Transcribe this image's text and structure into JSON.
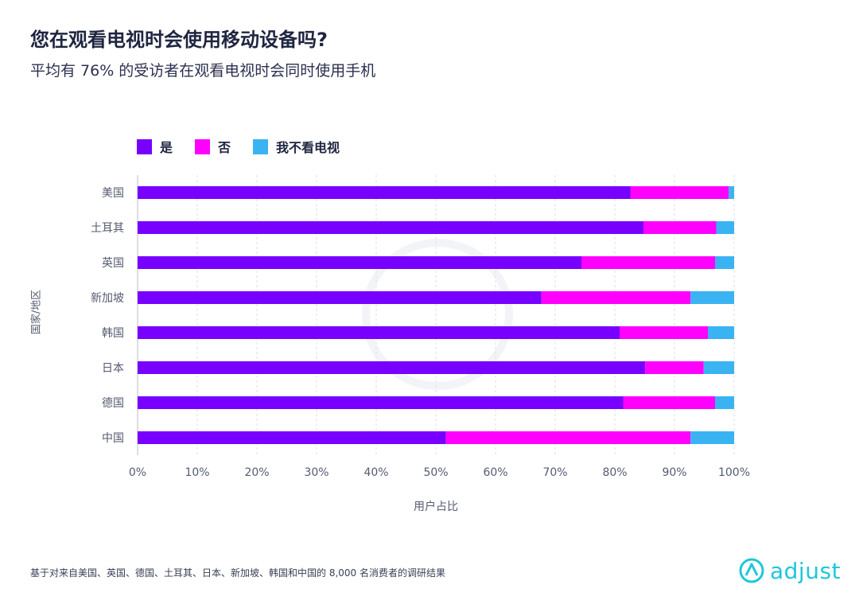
{
  "header": {
    "title": "您在观看电视时会使用移动设备吗?",
    "subtitle": "平均有 76% 的受访者在观看电视时会同时使用手机"
  },
  "legend": [
    {
      "label": "是",
      "color": "#7700ff"
    },
    {
      "label": "否",
      "color": "#ff00ff"
    },
    {
      "label": "我不看电视",
      "color": "#3ab3f2"
    }
  ],
  "chart_data": {
    "type": "bar",
    "orientation": "horizontal",
    "stacked": true,
    "title": "您在观看电视时会使用移动设备吗?",
    "subtitle": "平均有 76% 的受访者在观看电视时会同时使用手机",
    "xlabel": "用户占比",
    "ylabel": "国家/地区",
    "xlim": [
      0,
      100
    ],
    "x_ticks": [
      "0%",
      "10%",
      "20%",
      "30%",
      "40%",
      "50%",
      "60%",
      "70%",
      "80%",
      "90%",
      "100%"
    ],
    "grid": "vertical dashed",
    "legend_position": "top-left",
    "categories": [
      "美国",
      "土耳其",
      "英国",
      "新加坡",
      "韩国",
      "日本",
      "德国",
      "中国"
    ],
    "series": [
      {
        "name": "是",
        "color": "#7700ff",
        "values": [
          82.6,
          84.8,
          74.4,
          67.7,
          80.8,
          85.1,
          81.4,
          51.7
        ]
      },
      {
        "name": "否",
        "color": "#ff00ff",
        "values": [
          16.5,
          12.2,
          22.4,
          25.0,
          14.8,
          9.8,
          15.4,
          41.0
        ]
      },
      {
        "name": "我不看电视",
        "color": "#3ab3f2",
        "values": [
          0.9,
          3.0,
          3.2,
          7.3,
          4.4,
          5.1,
          3.2,
          7.3
        ]
      }
    ]
  },
  "footer": {
    "note": "基于对来自美国、英国、德国、土耳其、日本、新加坡、韩国和中国的 8,000 名消费者的调研结果",
    "logo_text": "adjust"
  }
}
